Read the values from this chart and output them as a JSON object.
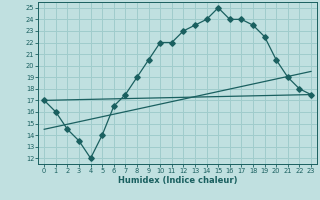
{
  "xlabel": "Humidex (Indice chaleur)",
  "bg_color": "#c0e0e0",
  "grid_color": "#a0cccc",
  "line_color": "#1a6060",
  "xlim": [
    -0.5,
    23.5
  ],
  "ylim": [
    11.5,
    25.5
  ],
  "xticks": [
    0,
    1,
    2,
    3,
    4,
    5,
    6,
    7,
    8,
    9,
    10,
    11,
    12,
    13,
    14,
    15,
    16,
    17,
    18,
    19,
    20,
    21,
    22,
    23
  ],
  "yticks": [
    12,
    13,
    14,
    15,
    16,
    17,
    18,
    19,
    20,
    21,
    22,
    23,
    24,
    25
  ],
  "curve1_x": [
    0,
    1,
    2,
    3,
    4,
    5,
    6,
    7,
    8,
    9,
    10,
    11,
    12,
    13,
    14,
    15,
    16,
    17,
    18,
    19,
    20,
    21,
    22,
    23
  ],
  "curve1_y": [
    17,
    16,
    14.5,
    13.5,
    12,
    14,
    16.5,
    17.5,
    19,
    20.5,
    22,
    22,
    23,
    23.5,
    24,
    25,
    24,
    24,
    23.5,
    22.5,
    20.5,
    19,
    18,
    17.5
  ],
  "curve2_x": [
    0,
    23
  ],
  "curve2_y": [
    14.5,
    19.5
  ],
  "curve3_x": [
    0,
    23
  ],
  "curve3_y": [
    17.0,
    17.5
  ]
}
